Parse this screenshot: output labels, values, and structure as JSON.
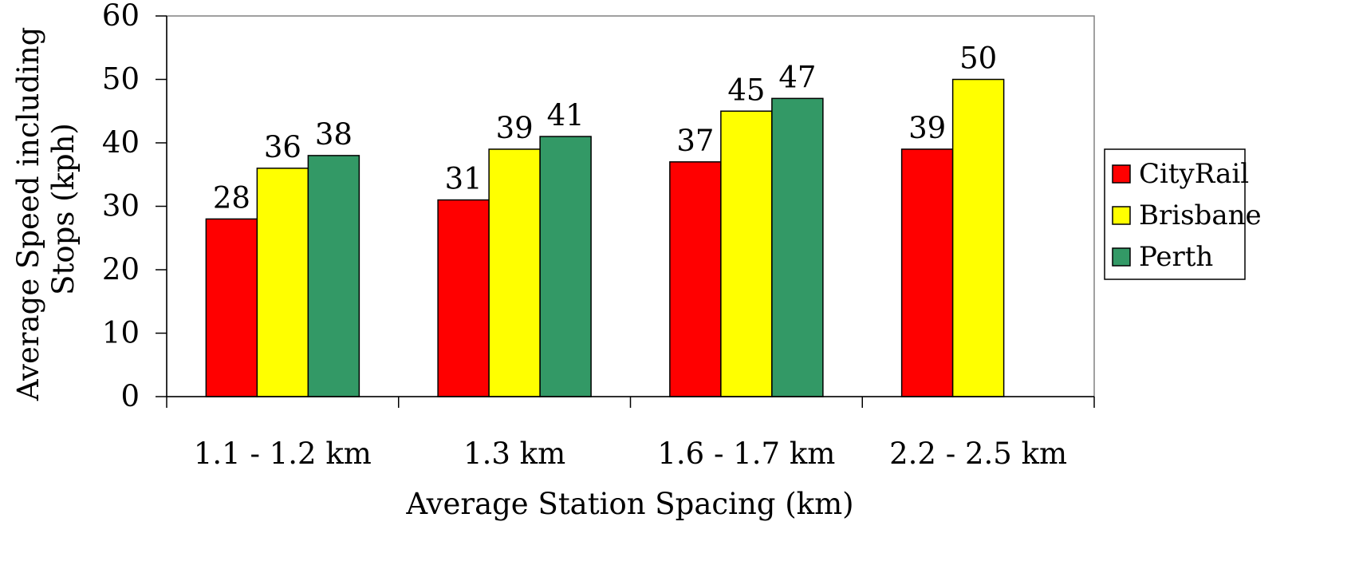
{
  "chart_data": {
    "type": "bar",
    "title": "",
    "xlabel": "Average Station Spacing (km)",
    "ylabel_lines": [
      "Average Speed including",
      "Stops (kph)"
    ],
    "ylim": [
      0,
      60
    ],
    "yticks": [
      0,
      10,
      20,
      30,
      40,
      50,
      60
    ],
    "categories": [
      "1.1 - 1.2 km",
      "1.3 km",
      "1.6 - 1.7 km",
      "2.2 - 2.5 km"
    ],
    "series": [
      {
        "name": "CityRail",
        "color": "#ff0000",
        "values": [
          28,
          31,
          37,
          39
        ]
      },
      {
        "name": "Brisbane",
        "color": "#ffff00",
        "values": [
          36,
          39,
          45,
          50
        ]
      },
      {
        "name": "Perth",
        "color": "#339966",
        "values": [
          38,
          41,
          47,
          null
        ]
      }
    ],
    "data_labels": true,
    "grid": false,
    "legend_position": "right"
  }
}
